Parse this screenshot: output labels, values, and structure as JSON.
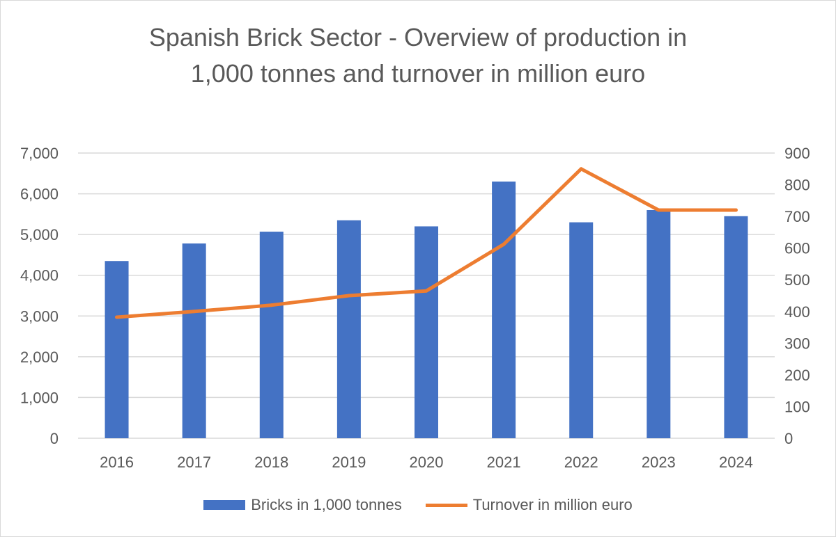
{
  "chart_data": {
    "type": "bar",
    "title": "Spanish Brick Sector - Overview of production in 1,000 tonnes and turnover in million euro",
    "title_lines": [
      "Spanish Brick Sector - Overview of production in",
      "1,000 tonnes and turnover in million euro"
    ],
    "categories": [
      "2016",
      "2017",
      "2018",
      "2019",
      "2020",
      "2021",
      "2022",
      "2023",
      "2024"
    ],
    "series": [
      {
        "name": "Bricks in 1,000 tonnes",
        "type": "bar",
        "axis": "left",
        "color": "#4472c4",
        "values": [
          4350,
          4780,
          5070,
          5350,
          5200,
          6300,
          5300,
          5600,
          5450
        ]
      },
      {
        "name": "Turnover in million euro",
        "type": "line",
        "axis": "right",
        "color": "#ed7d31",
        "values": [
          382,
          400,
          420,
          450,
          465,
          612,
          850,
          720,
          720
        ]
      }
    ],
    "y_left": {
      "min": 0,
      "max": 7000,
      "ticks": [
        0,
        1000,
        2000,
        3000,
        4000,
        5000,
        6000,
        7000
      ],
      "tick_labels": [
        "0",
        "1,000",
        "2,000",
        "3,000",
        "4,000",
        "5,000",
        "6,000",
        "7,000"
      ]
    },
    "y_right": {
      "min": 0,
      "max": 900,
      "ticks": [
        0,
        100,
        200,
        300,
        400,
        500,
        600,
        700,
        800,
        900
      ],
      "tick_labels": [
        "0",
        "100",
        "200",
        "300",
        "400",
        "500",
        "600",
        "700",
        "800",
        "900"
      ]
    },
    "grid": true,
    "legend_position": "bottom",
    "gridline_color": "#d9d9d9",
    "text_color": "#595959"
  }
}
